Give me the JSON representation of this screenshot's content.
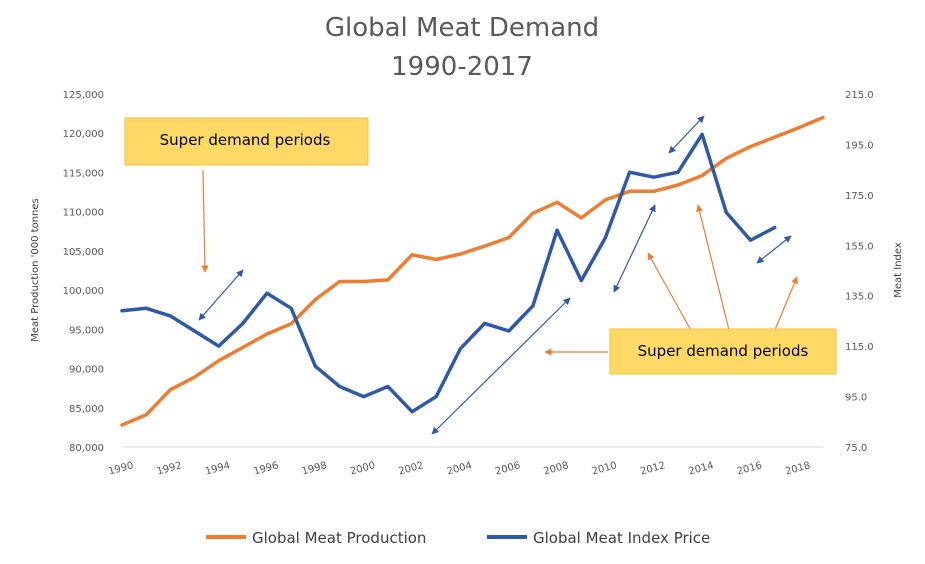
{
  "chart_data": {
    "type": "line",
    "title_line1": "Global Meat Demand",
    "title_line2": "1990-2017",
    "ylabel_left": "Meat Production '000 tonnes",
    "ylabel_right": "Meat Index",
    "x_ticks": [
      "1990",
      "1992",
      "1994",
      "1996",
      "1998",
      "2000",
      "2002",
      "2004",
      "2006",
      "2008",
      "2010",
      "2012",
      "2014",
      "2016",
      "2018"
    ],
    "x_range": [
      1990,
      2019
    ],
    "y_left_ticks": [
      "80,000",
      "85,000",
      "90,000",
      "95,000",
      "100,000",
      "105,000",
      "110,000",
      "115,000",
      "120,000",
      "125,000"
    ],
    "y_left_range": [
      80000,
      125000
    ],
    "y_right_ticks": [
      "75.0",
      "95.0",
      "115.0",
      "135.0",
      "155.0",
      "175.0",
      "195.0",
      "215.0"
    ],
    "y_right_range": [
      75,
      215
    ],
    "grid": "off",
    "legend_position": "bottom",
    "series": [
      {
        "name": "Global Meat Production",
        "axis": "left",
        "color": "#ED7D31",
        "x": [
          1990,
          1991,
          1992,
          1993,
          1994,
          1995,
          1996,
          1997,
          1998,
          1999,
          2000,
          2001,
          2002,
          2003,
          2004,
          2005,
          2006,
          2007,
          2008,
          2009,
          2010,
          2011,
          2012,
          2013,
          2014,
          2015,
          2016,
          2017,
          2018,
          2019
        ],
        "values": [
          82800,
          84100,
          87300,
          88900,
          91000,
          92700,
          94400,
          95700,
          98800,
          101100,
          101100,
          101300,
          104500,
          103900,
          104600,
          105600,
          106700,
          109800,
          111200,
          109200,
          111500,
          112600,
          112600,
          113400,
          114600,
          116800,
          118300,
          119500,
          120700,
          122000
        ]
      },
      {
        "name": "Global Meat Index Price",
        "axis": "right",
        "color": "#2E59A8",
        "x": [
          1990,
          1991,
          1992,
          1993,
          1994,
          1995,
          1996,
          1997,
          1998,
          1999,
          2000,
          2001,
          2002,
          2003,
          2004,
          2005,
          2006,
          2007,
          2008,
          2009,
          2010,
          2011,
          2012,
          2013,
          2014,
          2015,
          2016,
          2017
        ],
        "values": [
          129,
          130,
          127,
          121,
          115,
          124,
          136,
          130,
          107,
          99,
          95,
          99,
          89,
          95,
          114,
          124,
          121,
          131,
          161,
          141,
          158,
          184,
          182,
          184,
          199,
          168,
          157,
          162
        ]
      }
    ],
    "annotations": {
      "top_box": "Super demand periods",
      "bottom_box": "Super demand periods"
    }
  }
}
